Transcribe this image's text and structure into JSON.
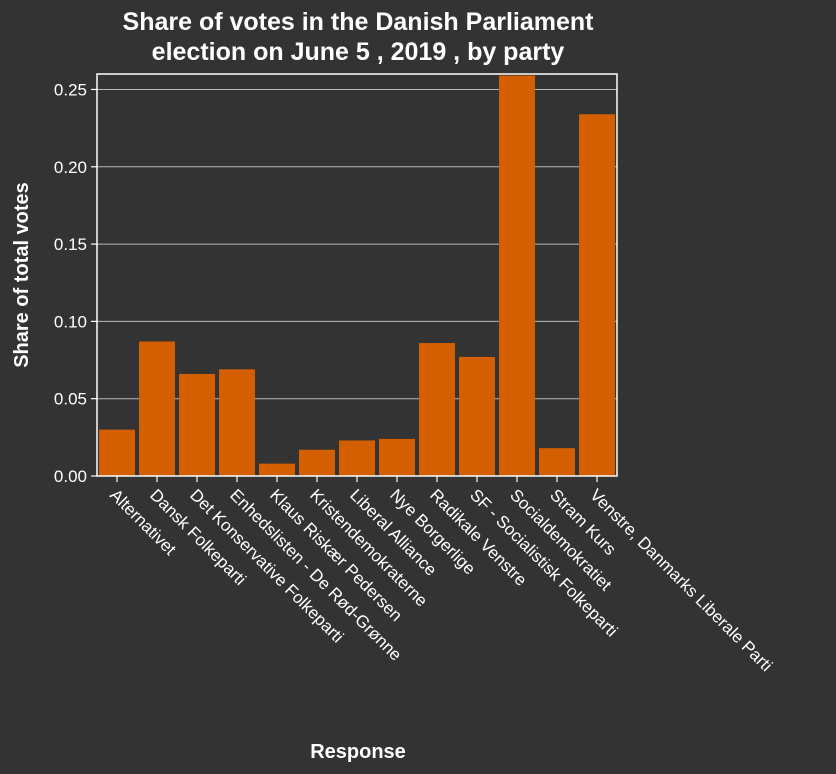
{
  "chart_data": {
    "type": "bar",
    "title_lines": [
      "Share of votes in the Danish Parliament",
      "election on June 5 , 2019 , by party"
    ],
    "xlabel": "Response",
    "ylabel": "Share of total votes",
    "categories": [
      "Alternativet",
      "Dansk Folkeparti",
      "Det Konservative Folkeparti",
      "Enhedslisten - De Rød-Grønne",
      "Klaus Riskær Pedersen",
      "Kristendemokraterne",
      "Liberal Alliance",
      "Nye Borgerlige",
      "Radikale Venstre",
      "SF - Socialistisk Folkeparti",
      "Socialdemokratiet",
      "Stram Kurs",
      "Venstre, Danmarks Liberale Parti"
    ],
    "values": [
      0.03,
      0.087,
      0.066,
      0.069,
      0.008,
      0.017,
      0.023,
      0.024,
      0.086,
      0.077,
      0.259,
      0.018,
      0.234
    ],
    "yticks": [
      "0.00",
      "0.05",
      "0.10",
      "0.15",
      "0.20",
      "0.25"
    ],
    "ytick_values": [
      0,
      0.05,
      0.1,
      0.15,
      0.2,
      0.25
    ],
    "ylim": [
      0,
      0.26
    ],
    "grid": true,
    "colors": {
      "background": "#333333",
      "bar": "#d35f00",
      "text": "#ffffff",
      "grid": "#b8b8b8"
    }
  }
}
